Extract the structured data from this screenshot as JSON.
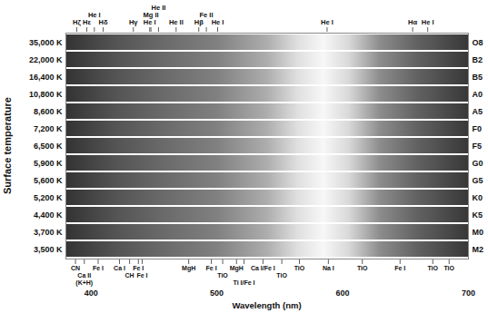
{
  "chart_data": {
    "type": "spectra",
    "xlabel": "Wavelength (nm)",
    "ylabel": "Surface temperature",
    "xlim": [
      380,
      700
    ],
    "xticks": [
      400,
      500,
      600,
      700
    ],
    "categories": [
      "35,000 K",
      "22,000 K",
      "16,400 K",
      "10,800 K",
      "8,600 K",
      "7,200 K",
      "6,500 K",
      "5,900 K",
      "5,600 K",
      "5,200 K",
      "4,400 K",
      "3,700 K",
      "3,500 K"
    ],
    "classes": [
      "O8",
      "B2",
      "B5",
      "A0",
      "A5",
      "F0",
      "F5",
      "G0",
      "G5",
      "K0",
      "K5",
      "M0",
      "M2"
    ],
    "continuum": {
      "wavelength": [
        380,
        420,
        460,
        500,
        540,
        565,
        585,
        605,
        630,
        660,
        700
      ],
      "brightness": [
        0.2,
        0.33,
        0.42,
        0.5,
        0.68,
        0.88,
        0.97,
        0.85,
        0.55,
        0.38,
        0.22
      ]
    },
    "lines": [
      [
        397,
        410,
        434,
        447,
        454,
        468,
        486,
        541,
        656
      ],
      [
        389,
        397,
        403,
        410,
        434,
        447,
        486,
        492,
        501,
        588,
        656,
        668
      ],
      [
        389,
        397,
        403,
        410,
        434,
        447,
        486,
        588,
        656
      ],
      [
        389,
        397,
        410,
        434,
        486,
        656
      ],
      [
        389,
        393,
        397,
        410,
        434,
        486,
        656
      ],
      [
        393,
        397,
        410,
        430,
        434,
        486,
        656
      ],
      [
        393,
        397,
        410,
        423,
        430,
        434,
        486,
        517,
        589,
        656
      ],
      [
        388,
        393,
        397,
        406,
        423,
        430,
        438,
        486,
        517,
        527,
        589,
        656
      ],
      [
        388,
        393,
        397,
        406,
        423,
        430,
        438,
        486,
        496,
        517,
        527,
        589,
        656
      ],
      [
        388,
        393,
        397,
        406,
        423,
        430,
        438,
        441,
        478,
        496,
        517,
        527,
        589,
        646
      ],
      [
        388,
        393,
        397,
        406,
        423,
        430,
        438,
        441,
        478,
        496,
        517,
        521,
        527,
        545,
        560,
        589,
        646
      ],
      [
        388,
        393,
        397,
        406,
        423,
        430,
        438,
        441,
        478,
        496,
        517,
        521,
        545,
        560,
        589,
        616,
        646,
        672,
        685
      ],
      [
        388,
        393,
        397,
        406,
        423,
        430,
        438,
        441,
        478,
        496,
        517,
        521,
        545,
        560,
        589,
        616,
        646,
        672,
        685
      ]
    ],
    "top_labels": [
      {
        "label": "Hζ",
        "x": 389
      },
      {
        "label": "Hε",
        "x": 397
      },
      {
        "label": "He I",
        "x": 403
      },
      {
        "label": "Hδ",
        "x": 410
      },
      {
        "label": "Hγ",
        "x": 434
      },
      {
        "label": "He I",
        "x": 447
      },
      {
        "label": "Mg II",
        "x": 448
      },
      {
        "label": "He II",
        "x": 454
      },
      {
        "label": "He II",
        "x": 468
      },
      {
        "label": "Hβ",
        "x": 486
      },
      {
        "label": "Fe II",
        "x": 492
      },
      {
        "label": "He I",
        "x": 501
      },
      {
        "label": "He I",
        "x": 588
      },
      {
        "label": "Hα",
        "x": 656
      },
      {
        "label": "He I",
        "x": 668
      }
    ],
    "bottom_labels": [
      {
        "label": "CN",
        "x": 388
      },
      {
        "label": "Ca II (K+H)",
        "x": 395
      },
      {
        "label": "Fe I",
        "x": 406
      },
      {
        "label": "Ca I",
        "x": 423
      },
      {
        "label": "CH",
        "x": 431
      },
      {
        "label": "Fe I",
        "x": 438
      },
      {
        "label": "Fe I",
        "x": 441
      },
      {
        "label": "MgH",
        "x": 478
      },
      {
        "label": "Fe I",
        "x": 496
      },
      {
        "label": "TiO",
        "x": 505
      },
      {
        "label": "MgH",
        "x": 516
      },
      {
        "label": "Ti I/Fe I",
        "x": 522
      },
      {
        "label": "Ca I/Fe I",
        "x": 537
      },
      {
        "label": "TiO",
        "x": 552
      },
      {
        "label": "TiO",
        "x": 566
      },
      {
        "label": "Na I",
        "x": 589
      },
      {
        "label": "TiO",
        "x": 616
      },
      {
        "label": "Fe I",
        "x": 646
      },
      {
        "label": "TiO",
        "x": 672
      },
      {
        "label": "TiO",
        "x": 685
      }
    ]
  }
}
